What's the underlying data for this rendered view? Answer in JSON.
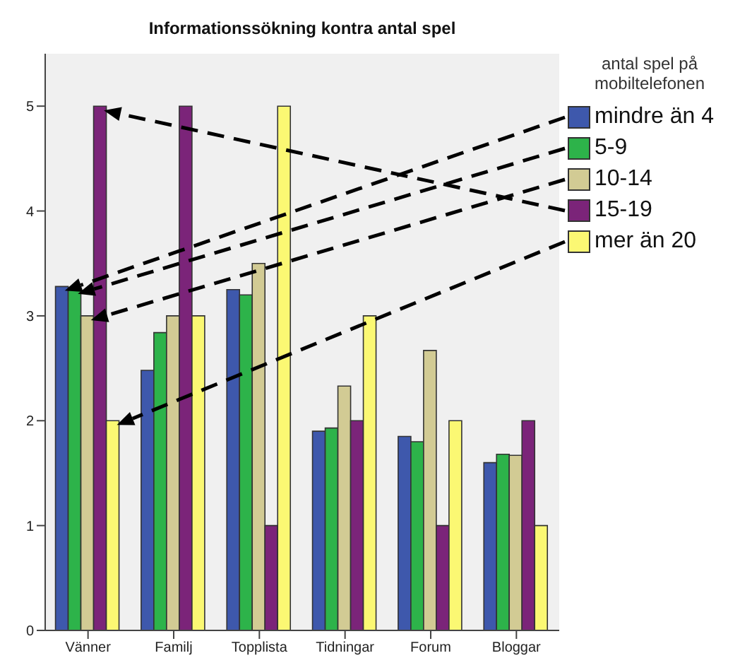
{
  "chart_data": {
    "type": "bar",
    "title": "Informationssökning kontra antal spel",
    "categories": [
      "Vänner",
      "Familj",
      "Topplista",
      "Tidningar",
      "Forum",
      "Bloggar"
    ],
    "series": [
      {
        "name": "mindre än 4",
        "color": "#3e58ac",
        "values": [
          3.28,
          2.48,
          3.25,
          1.9,
          1.85,
          1.6
        ]
      },
      {
        "name": "5-9",
        "color": "#2db34a",
        "values": [
          3.25,
          2.84,
          3.2,
          1.93,
          1.8,
          1.68
        ]
      },
      {
        "name": "10-14",
        "color": "#d2cb94",
        "values": [
          3.0,
          3.0,
          3.5,
          2.33,
          2.67,
          1.67
        ]
      },
      {
        "name": "15-19",
        "color": "#7b2479",
        "values": [
          5,
          5,
          1,
          2,
          1,
          2
        ]
      },
      {
        "name": "mer än 20",
        "color": "#fbf873",
        "values": [
          2,
          3,
          5,
          3,
          2,
          1
        ]
      }
    ],
    "ylim": [
      0,
      5.5
    ],
    "yticks": [
      0,
      1,
      2,
      3,
      4,
      5
    ],
    "legend": "right",
    "legend_title": "antal spel på mobiltelefonen"
  }
}
